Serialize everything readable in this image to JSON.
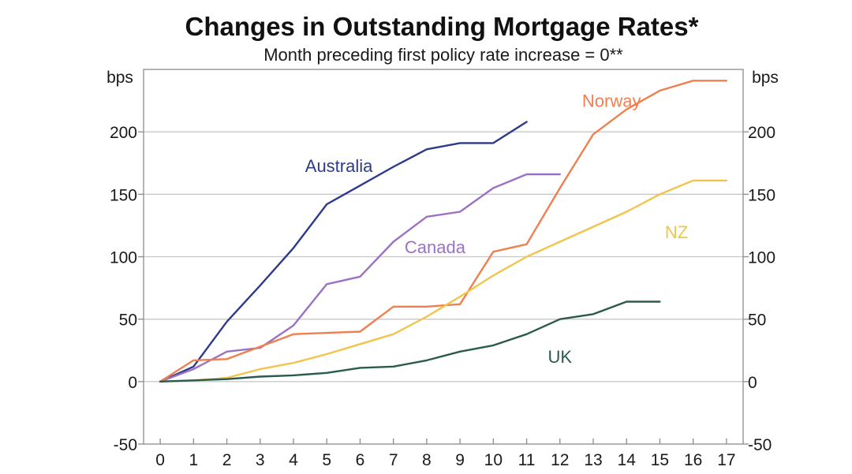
{
  "chart_data": {
    "type": "line",
    "title": "Changes in Outstanding Mortgage Rates*",
    "subtitle": "Month preceding first policy rate increase = 0**",
    "ylabel_left": "bps",
    "ylabel_right": "bps",
    "xlim": [
      -0.5,
      17.5
    ],
    "ylim": [
      -50,
      250
    ],
    "x_ticks": [
      0,
      1,
      2,
      3,
      4,
      5,
      6,
      7,
      8,
      9,
      10,
      11,
      12,
      13,
      14,
      15,
      16,
      17
    ],
    "y_ticks": [
      -50,
      0,
      50,
      100,
      150,
      200
    ],
    "grid": true,
    "series": [
      {
        "name": "Australia",
        "color": "#2e3a8c",
        "x": [
          0,
          1,
          2,
          3,
          4,
          5,
          6,
          7,
          8,
          9,
          10,
          11
        ],
        "y": [
          0,
          12,
          48,
          77,
          107,
          142,
          157,
          172,
          186,
          191,
          191,
          208
        ]
      },
      {
        "name": "Canada",
        "color": "#9b72c2",
        "x": [
          0,
          1,
          2,
          3,
          4,
          5,
          6,
          7,
          8,
          9,
          10,
          11,
          12
        ],
        "y": [
          0,
          10,
          24,
          27,
          45,
          78,
          84,
          112,
          132,
          136,
          155,
          166,
          166
        ]
      },
      {
        "name": "Norway",
        "color": "#f07f4f",
        "x": [
          0,
          1,
          2,
          3,
          4,
          5,
          6,
          7,
          8,
          9,
          10,
          11,
          12,
          13,
          14,
          15,
          16,
          17
        ],
        "y": [
          0,
          17,
          18,
          28,
          38,
          39,
          40,
          60,
          60,
          62,
          104,
          110,
          155,
          198,
          218,
          233,
          241,
          241
        ]
      },
      {
        "name": "NZ",
        "color": "#f1c44b",
        "x": [
          0,
          1,
          2,
          3,
          4,
          5,
          6,
          7,
          8,
          9,
          10,
          11,
          12,
          13,
          14,
          15,
          16,
          17
        ],
        "y": [
          0,
          1,
          3,
          10,
          15,
          22,
          30,
          38,
          52,
          68,
          85,
          100,
          112,
          124,
          136,
          150,
          161,
          161
        ]
      },
      {
        "name": "UK",
        "color": "#2b5a4f",
        "x": [
          0,
          1,
          2,
          3,
          4,
          5,
          6,
          7,
          8,
          9,
          10,
          11,
          12,
          13,
          14,
          15
        ],
        "y": [
          0,
          1,
          2,
          4,
          5,
          7,
          11,
          12,
          17,
          24,
          29,
          38,
          50,
          54,
          64,
          64
        ]
      }
    ]
  }
}
